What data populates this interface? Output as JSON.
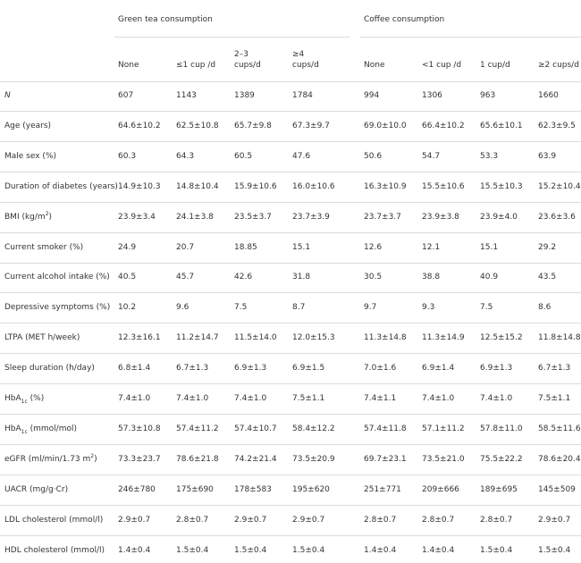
{
  "header": {
    "group_headers": [
      "Green tea consumption",
      "Coffee consumption"
    ],
    "columns": [
      "None",
      "≤1 cup /d",
      "2–3\ncups/d",
      "≥4\ncups/d",
      "None",
      "<1 cup /d",
      "1 cup/d",
      "≥2 cups/d"
    ]
  },
  "rows": [
    {
      "label": "N",
      "italic": true,
      "cells": [
        607,
        1143,
        1389,
        1784,
        994,
        1306,
        963,
        1660
      ]
    },
    {
      "label": "Age (years)",
      "cells": [
        "64.6±10.2",
        "62.5±10.8",
        "65.7±9.8",
        "67.3±9.7",
        "69.0±10.0",
        "66.4±10.2",
        "65.6±10.1",
        "62.3±9.5"
      ]
    },
    {
      "label": "Male sex (%)",
      "cells": [
        60.3,
        64.3,
        60.5,
        47.6,
        50.6,
        54.7,
        53.3,
        63.9
      ]
    },
    {
      "label": "Duration of diabetes (years)",
      "cells": [
        "14.9±10.3",
        "14.8±10.4",
        "15.9±10.6",
        "16.0±10.6",
        "16.3±10.9",
        "15.5±10.6",
        "15.5±10.3",
        "15.2±10.4"
      ]
    },
    {
      "label": [
        "BMI (kg/m",
        "2",
        ")"
      ],
      "label_script": "sup",
      "cells": [
        "23.9±3.4",
        "24.1±3.8",
        "23.5±3.7",
        "23.7±3.9",
        "23.7±3.7",
        "23.9±3.8",
        "23.9±4.0",
        "23.6±3.6"
      ]
    },
    {
      "label": "Current smoker (%)",
      "cells": [
        24.9,
        20.7,
        18.85,
        15.1,
        12.6,
        12.1,
        15.1,
        29.2
      ]
    },
    {
      "label": "Current alcohol intake (%)",
      "cells": [
        40.5,
        45.7,
        42.6,
        31.8,
        30.5,
        38.8,
        40.9,
        43.5
      ]
    },
    {
      "label": "Depressive symptoms (%)",
      "cells": [
        10.2,
        9.6,
        7.5,
        8.7,
        9.7,
        9.3,
        7.5,
        8.6
      ]
    },
    {
      "label": "LTPA (MET h/week)",
      "cells": [
        "12.3±16.1",
        "11.2±14.7",
        "11.5±14.0",
        "12.0±15.3",
        "11.3±14.8",
        "11.3±14.9",
        "12.5±15.2",
        "11.8±14.8"
      ]
    },
    {
      "label": "Sleep duration (h/day)",
      "cells": [
        "6.8±1.4",
        "6.7±1.3",
        "6.9±1.3",
        "6.9±1.5",
        "7.0±1.6",
        "6.9±1.4",
        "6.9±1.3",
        "6.7±1.3"
      ]
    },
    {
      "label": [
        "HbA",
        "1c",
        " (%)"
      ],
      "label_script": "sub",
      "cells": [
        "7.4±1.0",
        "7.4±1.0",
        "7.4±1.0",
        "7.5±1.1",
        "7.4±1.1",
        "7.4±1.0",
        "7.4±1.0",
        "7.5±1.1"
      ]
    },
    {
      "label": [
        "HbA",
        "1c",
        " (mmol/mol)"
      ],
      "label_script": "sub",
      "cells": [
        "57.3±10.8",
        "57.4±11.2",
        "57.4±10.7",
        "58.4±12.2",
        "57.4±11.8",
        "57.1±11.2",
        "57.8±11.0",
        "58.5±11.6"
      ]
    },
    {
      "label": [
        "eGFR (ml/min/1.73 m",
        "2",
        ")"
      ],
      "label_script": "sup",
      "cells": [
        "73.3±23.7",
        "78.6±21.8",
        "74.2±21.4",
        "73.5±20.9",
        "69.7±23.1",
        "73.5±21.0",
        "75.5±22.2",
        "78.6±20.4"
      ]
    },
    {
      "label": "UACR (mg/g·Cr)",
      "cells": [
        "246±780",
        "175±690",
        "178±583",
        "195±620",
        "251±771",
        "209±666",
        "189±695",
        "145±509"
      ]
    },
    {
      "label": "LDL cholesterol (mmol/l)",
      "cells": [
        "2.9±0.7",
        "2.8±0.7",
        "2.9±0.7",
        "2.9±0.7",
        "2.8±0.7",
        "2.8±0.7",
        "2.8±0.7",
        "2.9±0.7"
      ]
    },
    {
      "label": "HDL cholesterol (mmol/l)",
      "cells": [
        "1.4±0.4",
        "1.5±0.4",
        "1.5±0.4",
        "1.5±0.4",
        "1.4±0.4",
        "1.4±0.4",
        "1.5±0.4",
        "1.5±0.4"
      ]
    }
  ]
}
